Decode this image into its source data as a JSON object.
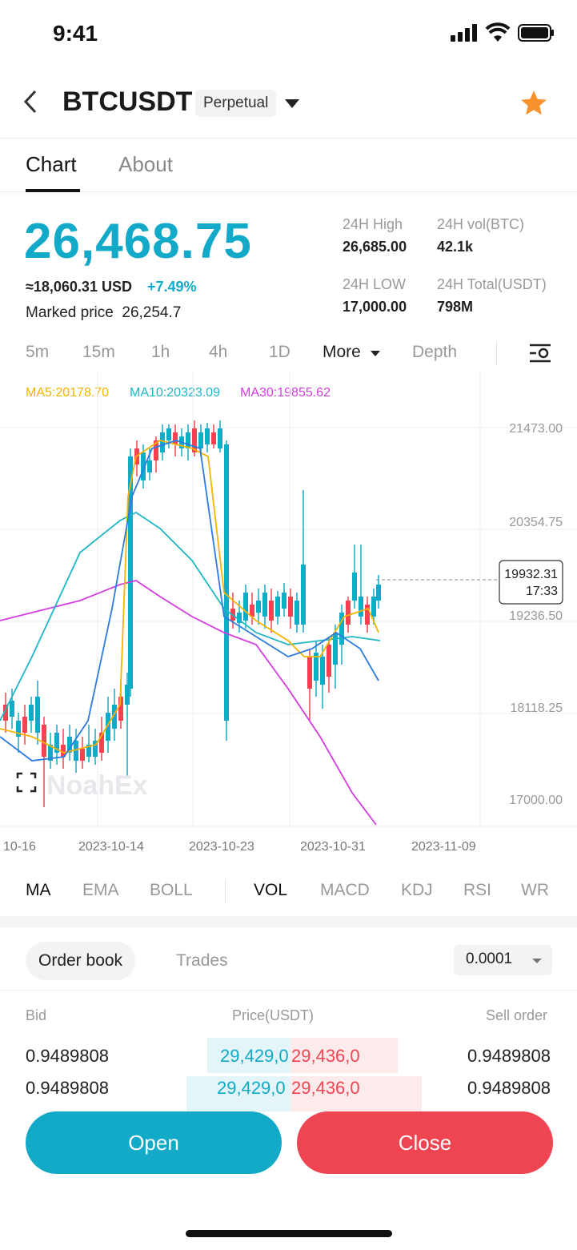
{
  "status_bar": {
    "time": "9:41"
  },
  "header": {
    "symbol": "BTCUSDT",
    "contract_type": "Perpetual",
    "favorite": true
  },
  "tabs": [
    {
      "label": "Chart",
      "active": true
    },
    {
      "label": "About",
      "active": false
    }
  ],
  "ticker": {
    "last_price": "26,468.75",
    "usd_equiv": "≈18,060.31 USD",
    "change_pct": "+7.49%",
    "marked_price_label": "Marked price",
    "marked_price": "26,254.7",
    "high_label": "24H High",
    "high": "26,685.00",
    "vol_label": "24H vol(BTC)",
    "vol": "42.1k",
    "low_label": "24H LOW",
    "low": "17,000.00",
    "total_label": "24H Total(USDT)",
    "total": "798M"
  },
  "intervals": [
    "5m",
    "15m",
    "1h",
    "4h",
    "1D",
    "More",
    "Depth"
  ],
  "ma_legend": {
    "ma5": "MA5:20178.70",
    "ma10": "MA10:20323.09",
    "ma30": "MA30:19855.62"
  },
  "colors": {
    "up": "#12aac7",
    "down": "#ef4451",
    "ma5": "#f5b400",
    "ma10": "#1fb6c6",
    "ma30": "#d53de0",
    "ma_extra": "#2d7bde"
  },
  "watermark": "NoahEx",
  "chart_data": {
    "type": "candlestick",
    "y_ticks": [
      "21473.00",
      "20354.75",
      "19236.50",
      "18118.25",
      "17000.00"
    ],
    "x_ticks": [
      "10-16",
      "2023-10-14",
      "2023-10-23",
      "2023-10-31",
      "2023-11-09"
    ],
    "last_price_tag": {
      "price": "19932.31",
      "time": "17:33"
    }
  },
  "indicators": {
    "main": [
      "MA",
      "EMA",
      "BOLL"
    ],
    "sub": [
      "VOL",
      "MACD",
      "KDJ",
      "RSI",
      "WR"
    ]
  },
  "order_book": {
    "tabs": [
      "Order book",
      "Trades"
    ],
    "precision": "0.0001",
    "headers": {
      "bid": "Bid",
      "price": "Price(USDT)",
      "sell": "Sell order"
    },
    "rows": [
      {
        "bid": "0.9489808",
        "bid_price": "29,429,0",
        "ask_price": "29,436,0",
        "sell": "0.9489808"
      },
      {
        "bid": "0.9489808",
        "bid_price": "29,429,0",
        "ask_price": "29,436,0",
        "sell": "0.9489808"
      }
    ]
  },
  "actions": {
    "open": "Open",
    "close": "Close"
  }
}
